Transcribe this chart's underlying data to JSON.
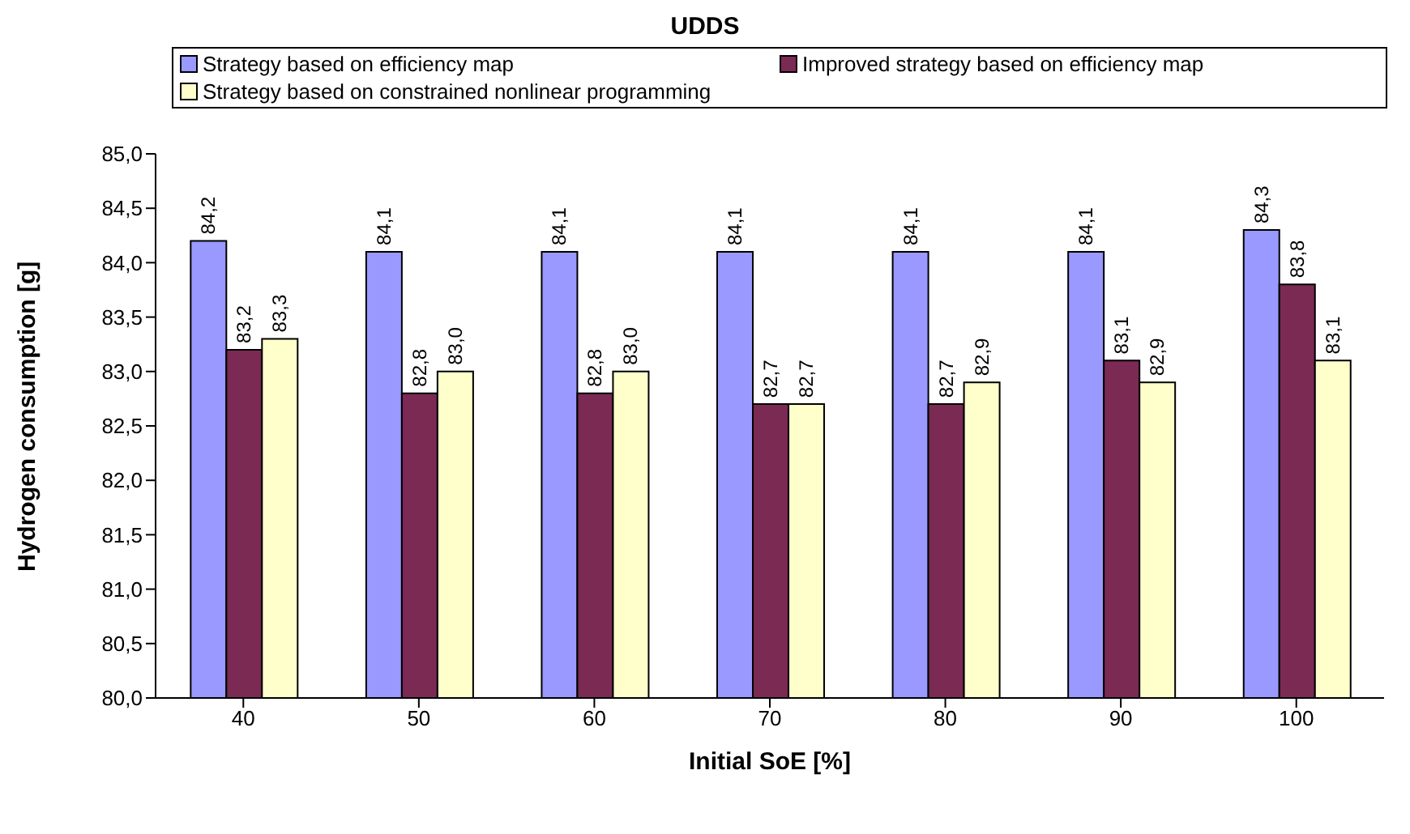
{
  "chart_data": {
    "type": "bar",
    "title": "UDDS",
    "xlabel": "Initial SoE [%]",
    "ylabel": "Hydrogen consumption [g]",
    "categories": [
      "40",
      "50",
      "60",
      "70",
      "80",
      "90",
      "100"
    ],
    "series": [
      {
        "name": "Strategy based on efficiency map",
        "color": "#9999ff",
        "values": [
          84.2,
          84.1,
          84.1,
          84.1,
          84.1,
          84.1,
          84.3
        ],
        "value_labels": [
          "84,2",
          "84,1",
          "84,1",
          "84,1",
          "84,1",
          "84,1",
          "84,3"
        ]
      },
      {
        "name": "Improved strategy based on efficiency map",
        "color": "#7b2a54",
        "values": [
          83.2,
          82.8,
          82.8,
          82.7,
          82.7,
          83.1,
          83.8
        ],
        "value_labels": [
          "83,2",
          "82,8",
          "82,8",
          "82,7",
          "82,7",
          "83,1",
          "83,8"
        ]
      },
      {
        "name": "Strategy based on constrained nonlinear programming",
        "color": "#ffffcc",
        "values": [
          83.3,
          83.0,
          83.0,
          82.7,
          82.9,
          82.9,
          83.1
        ],
        "value_labels": [
          "83,3",
          "83,0",
          "83,0",
          "82,7",
          "82,9",
          "82,9",
          "83,1"
        ]
      }
    ],
    "ylim": [
      80,
      85
    ],
    "yticks": [
      {
        "value": 80,
        "label": "80,0"
      },
      {
        "value": 80.5,
        "label": "80,5"
      },
      {
        "value": 81,
        "label": "81,0"
      },
      {
        "value": 81.5,
        "label": "81,5"
      },
      {
        "value": 82,
        "label": "82,0"
      },
      {
        "value": 82.5,
        "label": "82,5"
      },
      {
        "value": 83,
        "label": "83,0"
      },
      {
        "value": 83.5,
        "label": "83,5"
      },
      {
        "value": 84,
        "label": "84,0"
      },
      {
        "value": 84.5,
        "label": "84,5"
      },
      {
        "value": 85,
        "label": "85,0"
      }
    ],
    "legend": "top",
    "grid": false
  }
}
